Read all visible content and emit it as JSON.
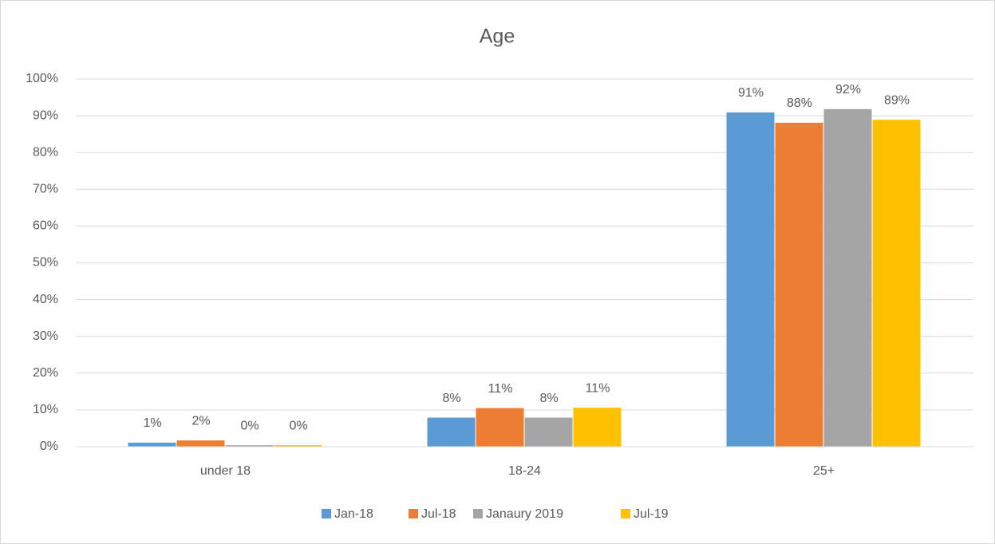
{
  "chart_data": {
    "type": "bar",
    "title": "Age",
    "categories": [
      "under 18",
      "18-24",
      "25+"
    ],
    "series": [
      {
        "name": "Jan-18",
        "color": "#5b9bd5",
        "values": [
          1.1,
          7.9,
          90.9
        ],
        "value_labels": [
          "1%",
          "8%",
          "91%"
        ]
      },
      {
        "name": "Jul-18",
        "color": "#ed7d31",
        "values": [
          1.7,
          10.5,
          88.1
        ],
        "value_labels": [
          "2%",
          "11%",
          "88%"
        ]
      },
      {
        "name": "Janaury 2019",
        "color": "#a5a5a5",
        "values": [
          0.4,
          7.9,
          91.8
        ],
        "value_labels": [
          "0%",
          "8%",
          "92%"
        ]
      },
      {
        "name": "Jul-19",
        "color": "#ffc000",
        "values": [
          0.4,
          10.6,
          88.9
        ],
        "value_labels": [
          "0%",
          "11%",
          "89%"
        ]
      }
    ],
    "ylim": [
      0,
      100
    ],
    "yticks": [
      {
        "value": 0,
        "label": "0%"
      },
      {
        "value": 10,
        "label": "10%"
      },
      {
        "value": 20,
        "label": "20%"
      },
      {
        "value": 30,
        "label": "30%"
      },
      {
        "value": 40,
        "label": "40%"
      },
      {
        "value": 50,
        "label": "50%"
      },
      {
        "value": 60,
        "label": "60%"
      },
      {
        "value": 70,
        "label": "70%"
      },
      {
        "value": 80,
        "label": "80%"
      },
      {
        "value": 90,
        "label": "90%"
      },
      {
        "value": 100,
        "label": "100%"
      }
    ],
    "grid": true,
    "legend": "bottom"
  }
}
